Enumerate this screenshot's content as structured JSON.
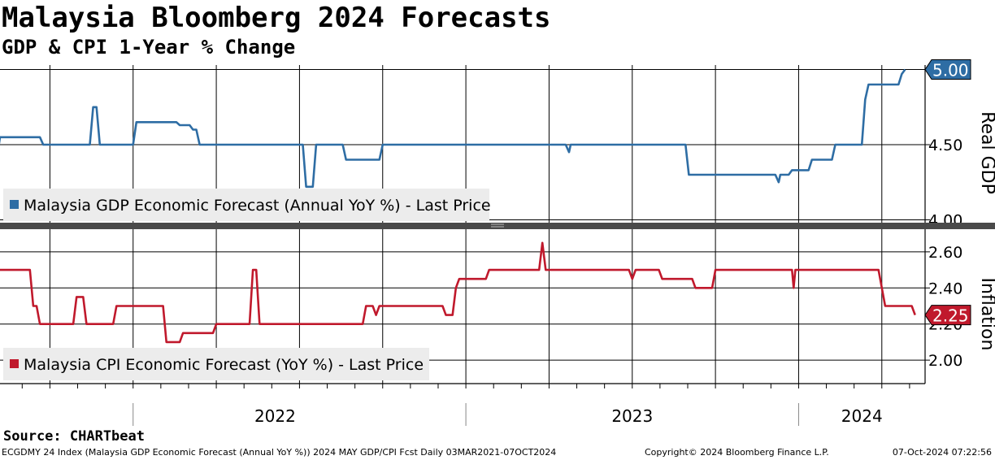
{
  "title": "Malaysia Bloomberg 2024 Forecasts",
  "subtitle": "GDP & CPI 1-Year % Change",
  "source": "Source: CHARTbeat",
  "footer": {
    "left": "ECGDMY 24 Index (Malaysia GDP Economic Forecast (Annual YoY %)) 2024 MAY GDP/CPI Fcst  Daily 03MAR2021-07OCT2024",
    "center": "Copyright© 2024 Bloomberg Finance L.P.",
    "right": "07-Oct-2024 07:22:56"
  },
  "colors": {
    "gdp": "#2e6da4",
    "cpi": "#c0192c",
    "grid": "#000000",
    "legend_bg": "#ececec"
  },
  "chart_data": [
    {
      "type": "line",
      "axis_label": "Real GDP",
      "legend": "Malaysia GDP Economic Forecast (Annual YoY %) - Last Price",
      "last_value_label": "5.00",
      "ylim": [
        3.97,
        5.03
      ],
      "yticks": [
        4.0,
        4.5,
        5.0
      ],
      "ytick_labels": [
        "4.00",
        "4.50",
        "5.00"
      ],
      "x_labels": [
        "2022",
        "2023",
        "2024"
      ],
      "series": [
        {
          "values": [
            [
              2021.59,
              4.4
            ],
            [
              2021.6,
              4.55
            ],
            [
              2021.72,
              4.55
            ],
            [
              2021.73,
              4.5
            ],
            [
              2021.87,
              4.5
            ],
            [
              2021.88,
              4.75
            ],
            [
              2021.89,
              4.75
            ],
            [
              2021.9,
              4.5
            ],
            [
              2022.0,
              4.5
            ],
            [
              2022.01,
              4.65
            ],
            [
              2022.13,
              4.65
            ],
            [
              2022.14,
              4.63
            ],
            [
              2022.17,
              4.63
            ],
            [
              2022.18,
              4.6
            ],
            [
              2022.19,
              4.6
            ],
            [
              2022.2,
              4.5
            ],
            [
              2022.51,
              4.5
            ],
            [
              2022.52,
              4.22
            ],
            [
              2022.54,
              4.22
            ],
            [
              2022.55,
              4.5
            ],
            [
              2022.63,
              4.5
            ],
            [
              2022.64,
              4.4
            ],
            [
              2022.74,
              4.4
            ],
            [
              2022.75,
              4.5
            ],
            [
              2023.3,
              4.5
            ],
            [
              2023.31,
              4.45
            ],
            [
              2023.315,
              4.5
            ],
            [
              2023.66,
              4.5
            ],
            [
              2023.67,
              4.3
            ],
            [
              2023.93,
              4.3
            ],
            [
              2023.94,
              4.25
            ],
            [
              2023.945,
              4.3
            ],
            [
              2023.97,
              4.3
            ],
            [
              2023.98,
              4.33
            ],
            [
              2024.03,
              4.33
            ],
            [
              2024.04,
              4.4
            ],
            [
              2024.1,
              4.4
            ],
            [
              2024.11,
              4.5
            ],
            [
              2024.19,
              4.5
            ],
            [
              2024.2,
              4.8
            ],
            [
              2024.21,
              4.9
            ],
            [
              2024.3,
              4.9
            ],
            [
              2024.31,
              4.97
            ],
            [
              2024.32,
              5.0
            ]
          ]
        }
      ]
    },
    {
      "type": "line",
      "axis_label": "Inflation",
      "legend": "Malaysia CPI Economic Forecast (YoY %) - Last Price",
      "last_value_label": "2.25",
      "ylim": [
        1.87,
        2.73
      ],
      "yticks": [
        2.0,
        2.2,
        2.4,
        2.6
      ],
      "ytick_labels": [
        "2.00",
        "2.20",
        "2.40",
        "2.60"
      ],
      "x_labels": [
        "2022",
        "2023",
        "2024"
      ],
      "series": [
        {
          "values": [
            [
              2021.6,
              2.5
            ],
            [
              2021.69,
              2.5
            ],
            [
              2021.7,
              2.3
            ],
            [
              2021.71,
              2.3
            ],
            [
              2021.72,
              2.2
            ],
            [
              2021.82,
              2.2
            ],
            [
              2021.83,
              2.35
            ],
            [
              2021.85,
              2.35
            ],
            [
              2021.86,
              2.2
            ],
            [
              2021.94,
              2.2
            ],
            [
              2021.95,
              2.3
            ],
            [
              2022.09,
              2.3
            ],
            [
              2022.1,
              2.1
            ],
            [
              2022.14,
              2.1
            ],
            [
              2022.15,
              2.15
            ],
            [
              2022.24,
              2.15
            ],
            [
              2022.25,
              2.2
            ],
            [
              2022.35,
              2.2
            ],
            [
              2022.36,
              2.5
            ],
            [
              2022.37,
              2.5
            ],
            [
              2022.38,
              2.2
            ],
            [
              2022.69,
              2.2
            ],
            [
              2022.7,
              2.3
            ],
            [
              2022.72,
              2.3
            ],
            [
              2022.73,
              2.25
            ],
            [
              2022.74,
              2.3
            ],
            [
              2022.93,
              2.3
            ],
            [
              2022.94,
              2.25
            ],
            [
              2022.96,
              2.25
            ],
            [
              2022.97,
              2.4
            ],
            [
              2022.98,
              2.45
            ],
            [
              2023.06,
              2.45
            ],
            [
              2023.07,
              2.5
            ],
            [
              2023.22,
              2.5
            ],
            [
              2023.23,
              2.65
            ],
            [
              2023.24,
              2.5
            ],
            [
              2023.49,
              2.5
            ],
            [
              2023.5,
              2.45
            ],
            [
              2023.51,
              2.5
            ],
            [
              2023.58,
              2.5
            ],
            [
              2023.59,
              2.45
            ],
            [
              2023.68,
              2.45
            ],
            [
              2023.69,
              2.4
            ],
            [
              2023.74,
              2.4
            ],
            [
              2023.75,
              2.5
            ],
            [
              2023.98,
              2.5
            ],
            [
              2023.985,
              2.4
            ],
            [
              2023.99,
              2.5
            ],
            [
              2024.24,
              2.5
            ],
            [
              2024.25,
              2.4
            ],
            [
              2024.26,
              2.3
            ],
            [
              2024.34,
              2.3
            ],
            [
              2024.35,
              2.25
            ]
          ]
        }
      ]
    }
  ]
}
